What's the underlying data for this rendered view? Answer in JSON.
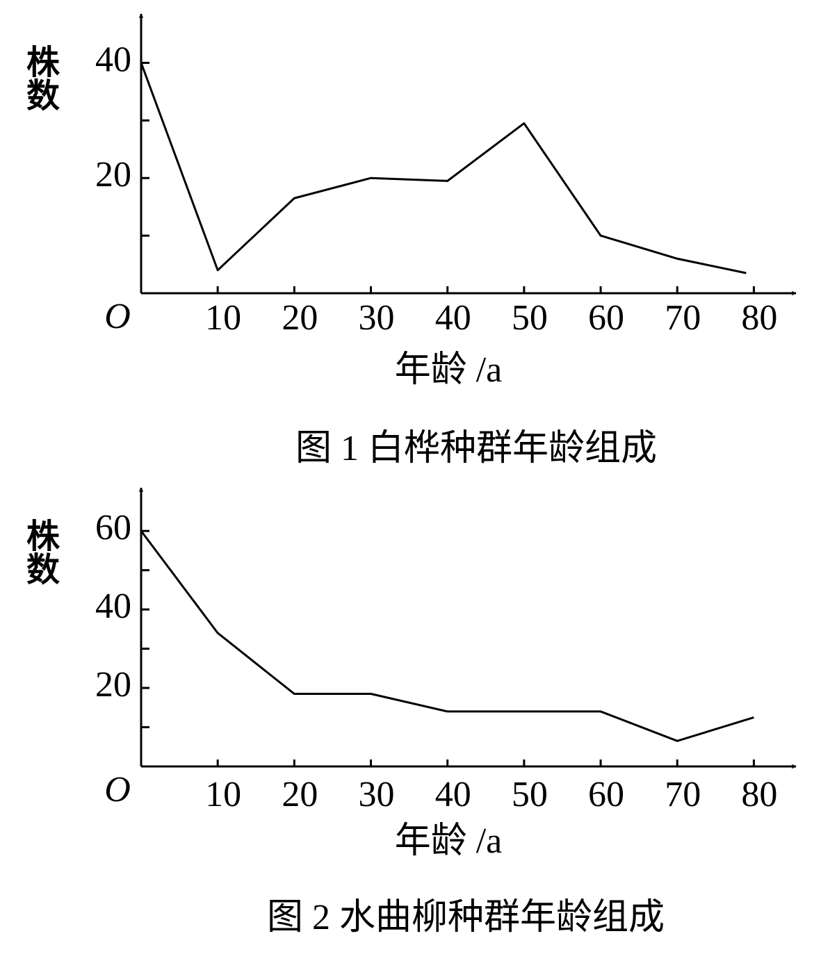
{
  "chart_data": [
    {
      "type": "line",
      "title": "图 1 白桦种群年龄组成",
      "xlabel": "年龄 /a",
      "ylabel": "株数",
      "origin_label": "O",
      "x": [
        0,
        10,
        20,
        30,
        40,
        50,
        60,
        70,
        79
      ],
      "values": [
        40,
        4,
        16.5,
        20,
        19.5,
        29.5,
        10,
        6,
        3.5
      ],
      "color": "#000000",
      "xlim": [
        0,
        85.5
      ],
      "xticks": [
        10,
        20,
        30,
        40,
        50,
        60,
        70,
        80
      ],
      "ylim": [
        0,
        48.5
      ],
      "yticks": [
        20,
        40
      ],
      "yminorticks": [
        10,
        30
      ]
    },
    {
      "type": "line",
      "title": "图 2 水曲柳种群年龄组成",
      "xlabel": "年龄 /a",
      "ylabel": "株数",
      "origin_label": "O",
      "x": [
        0,
        10,
        20,
        30,
        40,
        50,
        60,
        70,
        80
      ],
      "values": [
        60,
        34,
        18.5,
        18.5,
        14,
        14,
        14,
        6.5,
        12.5
      ],
      "color": "#000000",
      "xlim": [
        0,
        85.5
      ],
      "xticks": [
        10,
        20,
        30,
        40,
        50,
        60,
        70,
        80
      ],
      "ylim": [
        0,
        71
      ],
      "yticks": [
        20,
        40,
        60
      ],
      "yminorticks": [
        10,
        30,
        50
      ]
    }
  ]
}
